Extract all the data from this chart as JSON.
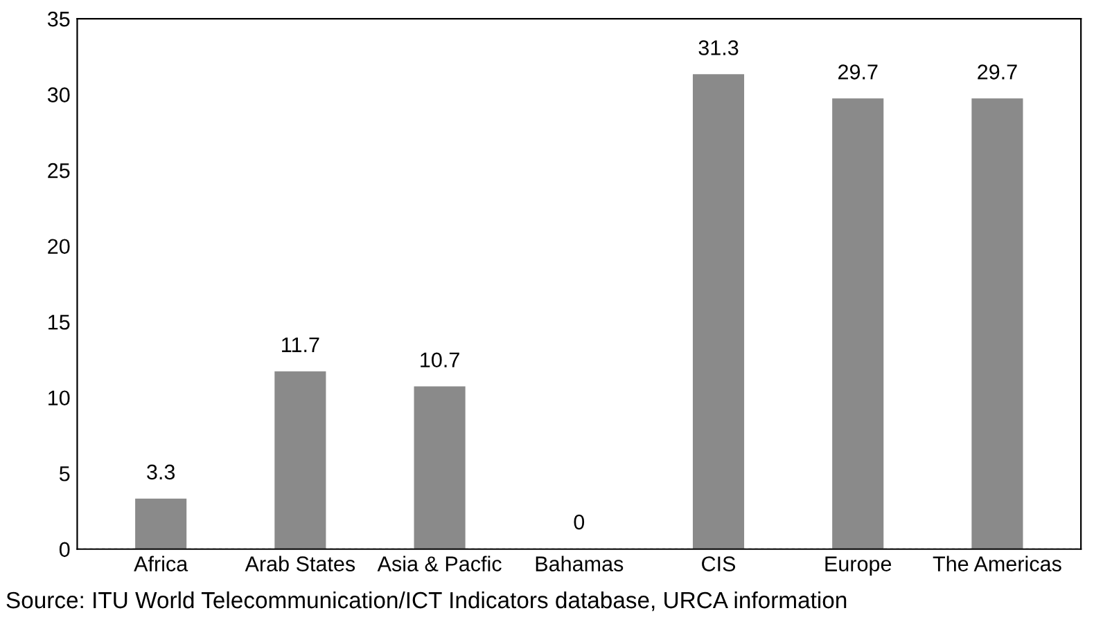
{
  "chart_data": {
    "type": "bar",
    "categories": [
      "Africa",
      "Arab States",
      "Asia & Pacfic",
      "Bahamas",
      "CIS",
      "Europe",
      "The Americas"
    ],
    "values": [
      3.3,
      11.7,
      10.7,
      0,
      31.3,
      29.7,
      29.7
    ],
    "color": "#8a8a8a",
    "data_labels": true,
    "ylim": [
      0,
      35
    ],
    "yticks": [
      0,
      5,
      10,
      15,
      20,
      25,
      30,
      35
    ],
    "grid": false,
    "annotations": [
      "Source: ITU World Telecommunication/ICT Indicators database, URCA information"
    ]
  }
}
